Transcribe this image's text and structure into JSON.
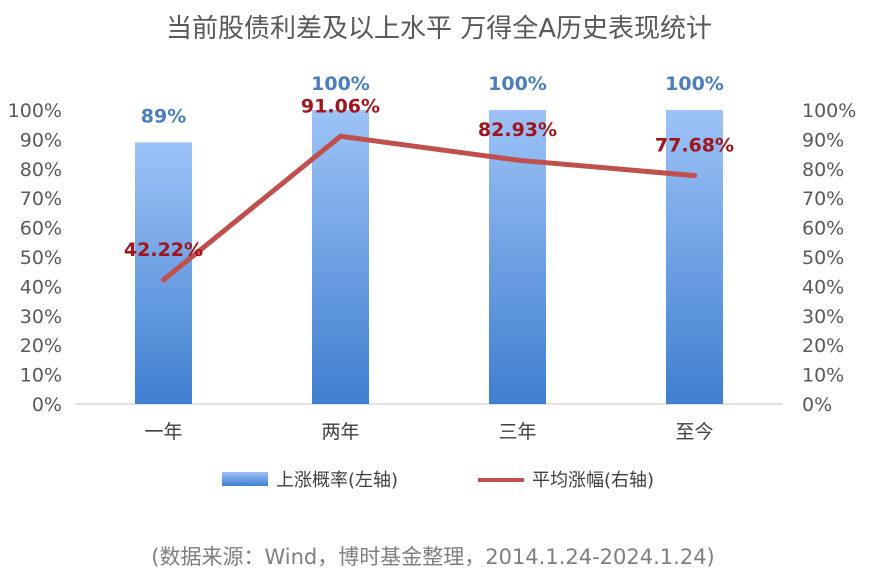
{
  "chart_data": {
    "type": "bar",
    "title": "当前股债利差及以上水平 万得全A历史表现统计",
    "categories": [
      "一年",
      "两年",
      "三年",
      "至今"
    ],
    "series": [
      {
        "name": "上涨概率(左轴)",
        "type": "bar",
        "axis": "left",
        "values": [
          89,
          100,
          100,
          100
        ],
        "labels": [
          "89%",
          "100%",
          "100%",
          "100%"
        ]
      },
      {
        "name": "平均涨幅(右轴)",
        "type": "line",
        "axis": "right",
        "values": [
          42.22,
          91.06,
          82.93,
          77.68
        ],
        "labels": [
          "42.22%",
          "91.06%",
          "82.93%",
          "77.68%"
        ]
      }
    ],
    "ylim_left": [
      0,
      100
    ],
    "ylim_right": [
      0,
      100
    ],
    "yticks": [
      "0%",
      "10%",
      "20%",
      "30%",
      "40%",
      "50%",
      "60%",
      "70%",
      "80%",
      "90%",
      "100%"
    ],
    "grid": false,
    "legend_position": "bottom",
    "colors": {
      "bar_top": "#9dc3f7",
      "bar_bottom": "#3f7fcf",
      "line": "#c0504d",
      "bar_label": "#4a7ebd",
      "line_label": "#a0151d"
    }
  },
  "source_note": "(数据来源：Wind，博时基金整理，2014.1.24-2024.1.24)"
}
